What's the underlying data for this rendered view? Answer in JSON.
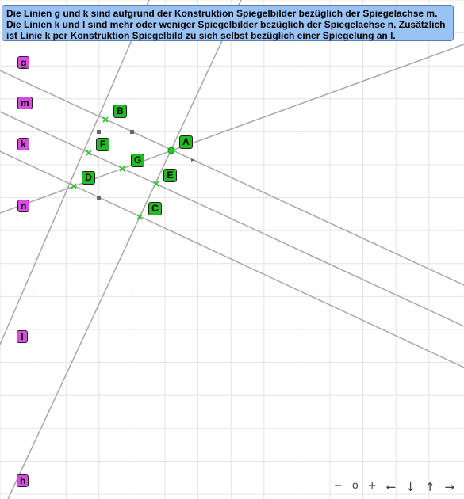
{
  "info": {
    "text": "Die Linien g und k sind aufgrund der Konstruktion Spiegelbilder bezüglich der Spiegelachse m.\nDie Linien k und l sind mehr oder weniger Spiegelbilder bezüglich der Spiegelachse n. Zusätzlich ist Linie k per Konstruktion Spiegelbild zu sich selbst bezüglich einer Spiegelung an l."
  },
  "line_labels": {
    "g": "g",
    "m": "m",
    "k": "k",
    "n": "n",
    "l": "l",
    "h": "h"
  },
  "point_labels": {
    "A": "A",
    "B": "B",
    "C": "C",
    "D": "D",
    "E": "E",
    "F": "F",
    "G": "G"
  },
  "controls": {
    "zoom_out": "−",
    "reset": "o",
    "zoom_in": "+",
    "left": "←",
    "down": "↓",
    "up": "↑",
    "right": "→"
  },
  "colors": {
    "line": "#a8a8a8",
    "grid": "#e4e4e4",
    "point": "#22cc22",
    "line_label_bg": "#d64fe0",
    "point_label_bg": "#22bb22",
    "info_bg": "#99c2f5"
  }
}
